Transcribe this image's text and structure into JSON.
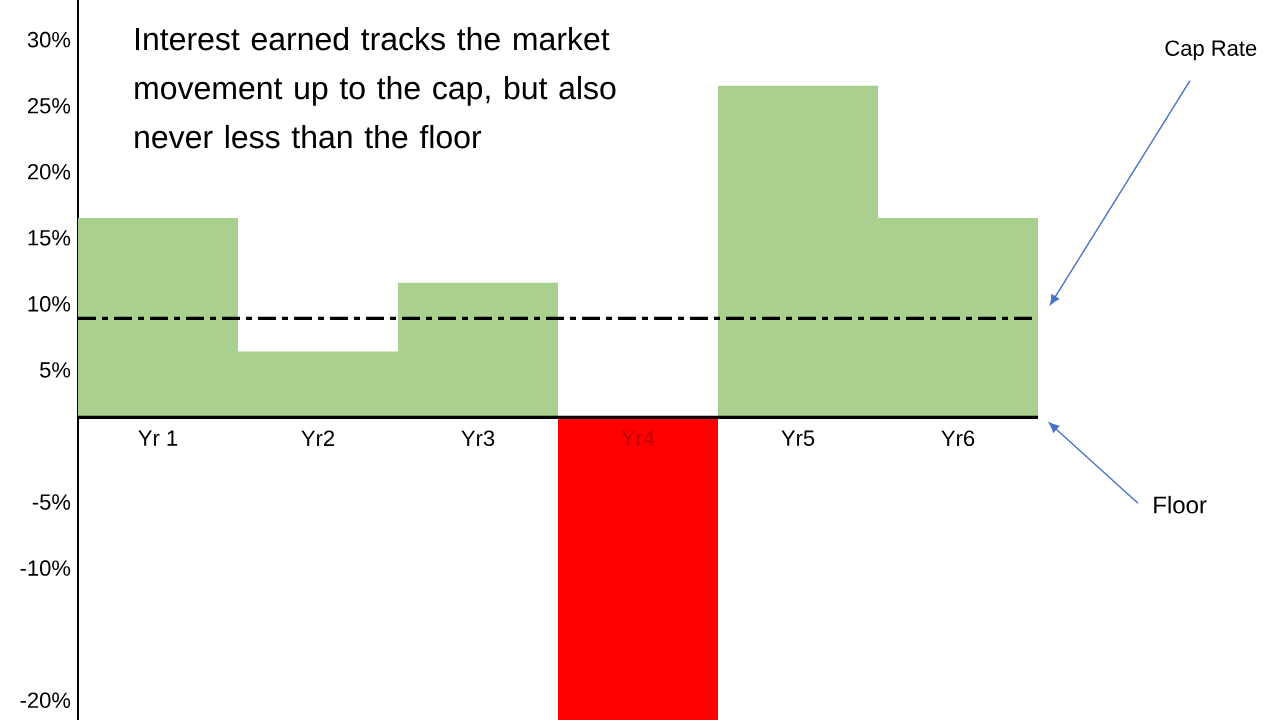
{
  "chart_data": {
    "type": "bar",
    "title": "Interest earned tracks the market movement up to the cap, but also never less than the floor",
    "categories": [
      "Yr 1",
      "Yr2",
      "Yr3",
      "Yr4",
      "Yr5",
      "Yr6"
    ],
    "values": [
      15.1,
      5.0,
      10.2,
      -22.9,
      25.1,
      15.1
    ],
    "base": [
      1.4,
      1.4,
      1.4,
      1.4,
      1.4,
      1.4
    ],
    "colors": [
      "#a9d08e",
      "#a9d08e",
      "#a9d08e",
      "#ff0000",
      "#a9d08e",
      "#a9d08e"
    ],
    "ylim": [
      -21.5,
      33.0
    ],
    "yticks": [
      {
        "value": 30,
        "label": "30%"
      },
      {
        "value": 25,
        "label": "25%"
      },
      {
        "value": 20,
        "label": "20%"
      },
      {
        "value": 15,
        "label": "15%"
      },
      {
        "value": 10,
        "label": "10%"
      },
      {
        "value": 5,
        "label": "5%"
      },
      {
        "value": -5,
        "label": "-5%"
      },
      {
        "value": -10,
        "label": "-10%"
      },
      {
        "value": -20,
        "label": "-20%"
      }
    ],
    "ref_lines": [
      {
        "axis": "y",
        "value": 8.9,
        "label": "Cap Rate",
        "color": "#000000",
        "line_style": "dashdot"
      }
    ],
    "annotations": [
      "Floor"
    ],
    "grid": false
  }
}
